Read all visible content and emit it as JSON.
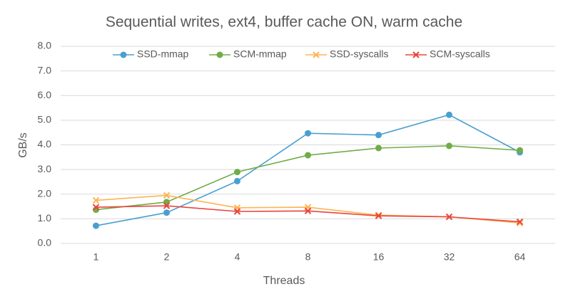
{
  "chart_data": {
    "type": "line",
    "title": "Sequential writes, ext4, buffer cache ON, warm cache",
    "x_label": "Threads",
    "y_label": "GB/s",
    "categories": [
      "1",
      "2",
      "4",
      "8",
      "16",
      "32",
      "64"
    ],
    "series": [
      {
        "name": "SSD-mmap",
        "color": "#4a9fd0",
        "marker": "circle",
        "values": [
          0.72,
          1.25,
          2.53,
          4.47,
          4.4,
          5.22,
          3.7
        ]
      },
      {
        "name": "SCM-mmap",
        "color": "#70ad47",
        "marker": "circle",
        "values": [
          1.37,
          1.68,
          2.9,
          3.58,
          3.87,
          3.96,
          3.78
        ]
      },
      {
        "name": "SSD-syscalls",
        "color": "#ffb453",
        "marker": "x",
        "values": [
          1.75,
          1.95,
          1.45,
          1.47,
          1.15,
          1.08,
          0.83
        ]
      },
      {
        "name": "SCM-syscalls",
        "color": "#e8453c",
        "marker": "x",
        "values": [
          1.47,
          1.53,
          1.3,
          1.32,
          1.12,
          1.08,
          0.88
        ]
      }
    ],
    "ylim": [
      0,
      8
    ],
    "yticks": [
      {
        "value": 0,
        "label": "0.0"
      },
      {
        "value": 1,
        "label": "1.0"
      },
      {
        "value": 2,
        "label": "2.0"
      },
      {
        "value": 3,
        "label": "3.0"
      },
      {
        "value": 4,
        "label": "4.0"
      },
      {
        "value": 5,
        "label": "5.0"
      },
      {
        "value": 6,
        "label": "6.0"
      },
      {
        "value": 7,
        "label": "7.0"
      },
      {
        "value": 8,
        "label": "8.0"
      }
    ],
    "grid": true,
    "legend": "top"
  }
}
